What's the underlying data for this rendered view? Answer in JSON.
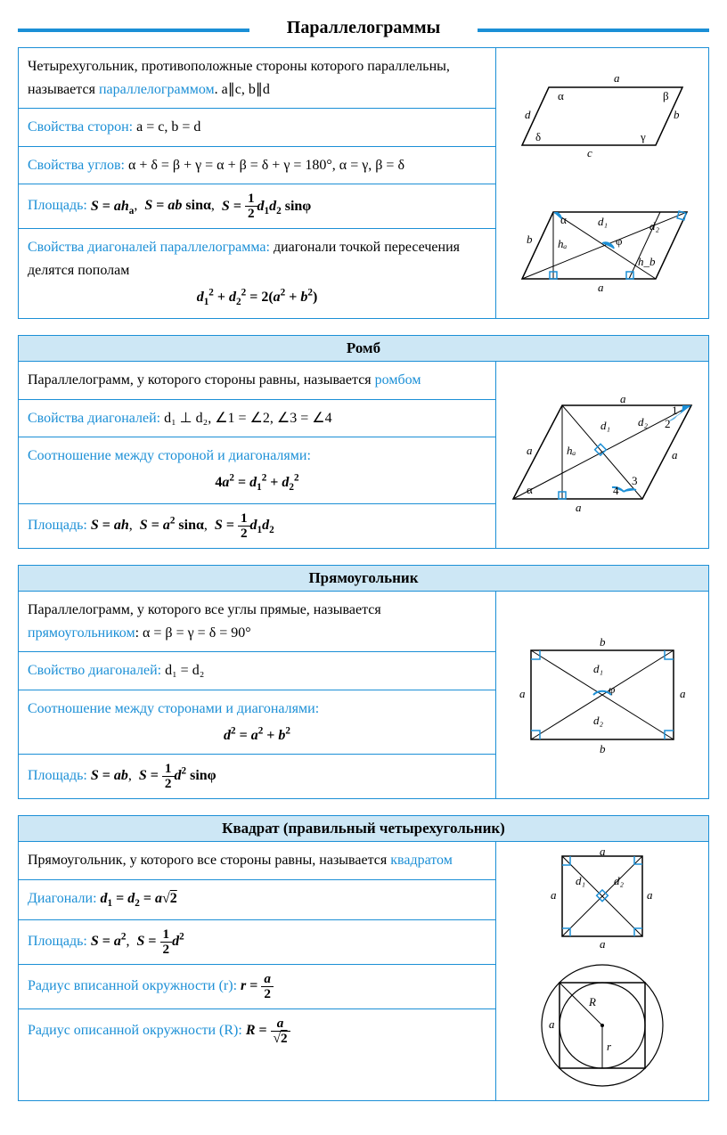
{
  "pageTitle": "Параллелограммы",
  "colors": {
    "accent": "#1b8fd6",
    "headerBg": "#cde7f5",
    "text": "#000000",
    "background": "#ffffff"
  },
  "sections": [
    {
      "id": "parallelogram",
      "title": null,
      "rows": [
        {
          "prefix": "Четырехугольник, противоположные стороны которого параллельны, называется ",
          "key": "параллелограммом",
          "suffix": ". a∥c, b∥d"
        },
        {
          "key": "Свойства сторон:",
          "suffix": " a = c, b = d"
        },
        {
          "key": "Свойства углов:",
          "suffix": " α + δ = β + γ = α + β = δ + γ = 180°, α = γ, β = δ"
        },
        {
          "key": "Площадь:",
          "suffix_html": " <b><i>S</i> = <i>ah</i><sub>a</sub></b>,&nbsp;&nbsp;<b><i>S</i> = <i>ab</i> sinα</b>,&nbsp;&nbsp;<b><i>S</i> = <span class='frac'><span class='n'>1</span><span class='d'>2</span></span><i>d</i><sub>1</sub><i>d</i><sub>2</sub> sinφ</b>"
        },
        {
          "key": "Свойства диагоналей параллелограмма:",
          "suffix": " диагонали точкой пересечения делятся пополам",
          "formula_html": "<b><i>d</i><sub>1</sub><sup>2</sup> + <i>d</i><sub>2</sub><sup>2</sup> = 2(<i>a</i><sup>2</sup> + <i>b</i><sup>2</sup>)</b>"
        }
      ],
      "diagrams": {
        "top": {
          "labels": {
            "a": "a",
            "b": "b",
            "c": "c",
            "d": "d",
            "alpha": "α",
            "beta": "β",
            "gamma": "γ",
            "delta": "δ"
          }
        },
        "bottom": {
          "labels": {
            "a": "a",
            "b": "b",
            "ha": "hₐ",
            "hb": "h_b",
            "d1": "d₁",
            "d2": "d₂",
            "phi": "φ",
            "alpha": "α"
          }
        }
      }
    },
    {
      "id": "rhombus",
      "title": "Ромб",
      "rows": [
        {
          "prefix": "Параллелограмм, у которого стороны равны, называется ",
          "key": "ромбом"
        },
        {
          "key": "Свойства диагоналей:",
          "suffix": " d₁ ⊥ d₂, ∠1 = ∠2, ∠3 = ∠4"
        },
        {
          "key": "Соотношение между стороной и диагоналями:",
          "formula_html": "<b>4<i>a</i><sup>2</sup> = <i>d</i><sub>1</sub><sup>2</sup> + <i>d</i><sub>2</sub><sup>2</sup></b>"
        },
        {
          "key": "Площадь:",
          "suffix_html": " <b><i>S</i> = <i>ah</i></b>,&nbsp;&nbsp;<b><i>S</i> = <i>a</i><sup>2</sup> sinα</b>,&nbsp;&nbsp;<b><i>S</i> = <span class='frac'><span class='n'>1</span><span class='d'>2</span></span><i>d</i><sub>1</sub><i>d</i><sub>2</sub></b>"
        }
      ],
      "diagram": {
        "labels": {
          "a": "a",
          "alpha": "α",
          "ha": "hₐ",
          "d1": "d₁",
          "d2": "d₂",
          "ang1": "1",
          "ang2": "2",
          "ang3": "3",
          "ang4": "4"
        }
      }
    },
    {
      "id": "rectangle",
      "title": "Прямоугольник",
      "rows": [
        {
          "prefix": "Параллелограмм, у которого все углы прямые, называется ",
          "key": "прямоугольником",
          "suffix": ": α = β = γ = δ = 90°"
        },
        {
          "key": "Свойство диагоналей:",
          "suffix": " d₁ = d₂"
        },
        {
          "key": "Соотношение между сторонами и диагоналями:",
          "formula_html": "<b><i>d</i><sup>2</sup> = <i>a</i><sup>2</sup> + <i>b</i><sup>2</sup></b>"
        },
        {
          "key": "Площадь:",
          "suffix_html": " <b><i>S</i> = <i>ab</i></b>,&nbsp;&nbsp;<b><i>S</i> = <span class='frac'><span class='n'>1</span><span class='d'>2</span></span><i>d</i><sup>2</sup> sinφ</b>"
        }
      ],
      "diagram": {
        "labels": {
          "a": "a",
          "b": "b",
          "d1": "d₁",
          "d2": "d₂",
          "phi": "φ"
        }
      }
    },
    {
      "id": "square",
      "title": "Квадрат (правильный четырехугольник)",
      "rows": [
        {
          "prefix": "Прямоугольник, у которого все стороны равны, называется ",
          "key": "квадратом"
        },
        {
          "key": "Диагонали:",
          "suffix_html": " <b><i>d</i><sub>1</sub> = <i>d</i><sub>2</sub> = <i>a</i>√<span class='sqrt'>2</span></b>"
        },
        {
          "key": "Площадь:",
          "suffix_html": " <b><i>S</i> = <i>a</i><sup>2</sup></b>,&nbsp;&nbsp;<b><i>S</i> = <span class='frac'><span class='n'>1</span><span class='d'>2</span></span><i>d</i><sup>2</sup></b>"
        },
        {
          "key": "Радиус вписанной окружности (r):",
          "suffix_html": " <b><i>r</i> = <span class='frac'><span class='n'><i>a</i></span><span class='d'>2</span></span></b>"
        },
        {
          "key": "Радиус описанной окружности (R):",
          "suffix_html": " <b><i>R</i> = <span class='frac'><span class='n'><i>a</i></span><span class='d'>√<span class=\"sqrt\">2</span></span></span></b>"
        }
      ],
      "diagrams": {
        "top": {
          "labels": {
            "a": "a",
            "d1": "d₁",
            "d2": "d₂"
          }
        },
        "bottom": {
          "labels": {
            "a": "a",
            "R": "R",
            "r": "r"
          }
        }
      }
    }
  ]
}
